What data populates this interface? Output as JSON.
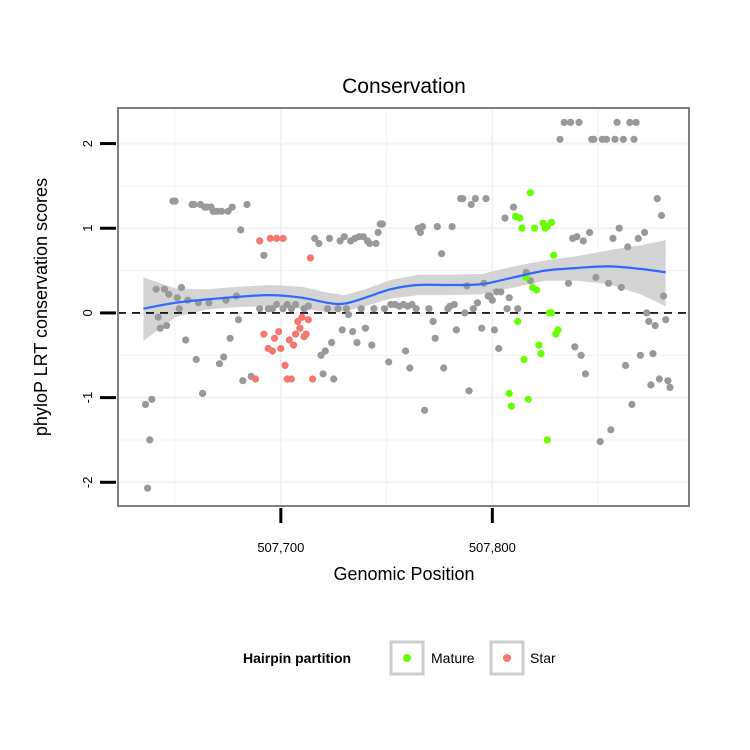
{
  "chart_data": {
    "type": "scatter",
    "title": "Conservation",
    "xlabel": "Genomic Position",
    "ylabel": "phyloP LRT conservation scores",
    "xlim": [
      507623,
      507893
    ],
    "ylim": [
      -2.28,
      2.42
    ],
    "x_ticks": [
      {
        "value": 507700,
        "label": "507,700"
      },
      {
        "value": 507800,
        "label": "507,800"
      }
    ],
    "y_ticks": [
      {
        "value": -2,
        "label": "-2"
      },
      {
        "value": -1,
        "label": "-1"
      },
      {
        "value": 0,
        "label": "0"
      },
      {
        "value": 1,
        "label": "1"
      },
      {
        "value": 2,
        "label": "2"
      }
    ],
    "grid": true,
    "reference_line": {
      "y": 0,
      "style": "dashed"
    },
    "legend": {
      "title": "Hairpin partition",
      "placement": "bottom",
      "entries": [
        {
          "label": "Mature",
          "color": "#66ff00"
        },
        {
          "label": "Star",
          "color": "#f8766d"
        }
      ]
    },
    "colors": {
      "other": "#999999",
      "smooth_line": "#3366ff",
      "ribbon": "#cccccc",
      "panel_border": "#7f7f7f"
    },
    "smooth": {
      "x": [
        507635,
        507650,
        507665,
        507680,
        507695,
        507710,
        507722,
        507730,
        507740,
        507752,
        507765,
        507780,
        507795,
        507810,
        507825,
        507840,
        507855,
        507870,
        507882
      ],
      "y": [
        0.05,
        0.12,
        0.16,
        0.19,
        0.21,
        0.18,
        0.12,
        0.11,
        0.18,
        0.28,
        0.33,
        0.33,
        0.34,
        0.42,
        0.5,
        0.53,
        0.55,
        0.52,
        0.48
      ],
      "lower": [
        -0.33,
        -0.05,
        0.04,
        0.07,
        0.08,
        0.05,
        0.01,
        0.02,
        0.08,
        0.17,
        0.21,
        0.21,
        0.22,
        0.3,
        0.38,
        0.38,
        0.34,
        0.22,
        0.08
      ],
      "upper": [
        0.42,
        0.29,
        0.28,
        0.31,
        0.33,
        0.31,
        0.24,
        0.21,
        0.28,
        0.39,
        0.45,
        0.45,
        0.46,
        0.55,
        0.62,
        0.67,
        0.74,
        0.8,
        0.86
      ]
    },
    "series": [
      {
        "name": "Mature",
        "color": "#66ff00",
        "points": [
          [
            507811,
            1.14
          ],
          [
            507813,
            1.12
          ],
          [
            507814,
            1.0
          ],
          [
            507816,
            0.42
          ],
          [
            507818,
            1.42
          ],
          [
            507820,
            1.0
          ],
          [
            507821,
            0.27
          ],
          [
            507822,
            -0.38
          ],
          [
            507823,
            -0.48
          ],
          [
            507824,
            1.06
          ],
          [
            507825,
            1.0
          ],
          [
            507826,
            1.02
          ],
          [
            507827,
            0.0
          ],
          [
            507828,
            1.07
          ],
          [
            507829,
            0.68
          ],
          [
            507830,
            -0.25
          ],
          [
            507831,
            -0.2
          ],
          [
            507808,
            -0.95
          ],
          [
            507809,
            -1.1
          ],
          [
            507812,
            -0.1
          ],
          [
            507815,
            -0.55
          ],
          [
            507817,
            -1.02
          ],
          [
            507819,
            0.3
          ],
          [
            507826,
            -1.5
          ],
          [
            507828,
            0.0
          ]
        ]
      },
      {
        "name": "Star",
        "color": "#f8766d",
        "points": [
          [
            507688,
            -0.78
          ],
          [
            507690,
            0.85
          ],
          [
            507692,
            -0.25
          ],
          [
            507694,
            -0.42
          ],
          [
            507695,
            0.88
          ],
          [
            507697,
            -0.3
          ],
          [
            507698,
            0.88
          ],
          [
            507700,
            -0.42
          ],
          [
            507701,
            0.88
          ],
          [
            507702,
            -0.62
          ],
          [
            507703,
            -0.78
          ],
          [
            507704,
            -0.32
          ],
          [
            507705,
            -0.78
          ],
          [
            507706,
            -0.38
          ],
          [
            507707,
            -0.25
          ],
          [
            507708,
            -0.1
          ],
          [
            507709,
            -0.18
          ],
          [
            507710,
            -0.05
          ],
          [
            507712,
            -0.25
          ],
          [
            507713,
            -0.08
          ],
          [
            507714,
            0.65
          ],
          [
            507715,
            -0.78
          ],
          [
            507696,
            -0.45
          ],
          [
            507711,
            -0.28
          ],
          [
            507699,
            -0.22
          ]
        ]
      },
      {
        "name": "",
        "color": "#999999",
        "points": [
          [
            507636,
            -1.08
          ],
          [
            507638,
            -1.5
          ],
          [
            507637,
            -2.07
          ],
          [
            507639,
            -1.02
          ],
          [
            507641,
            0.28
          ],
          [
            507642,
            -0.05
          ],
          [
            507643,
            -0.18
          ],
          [
            507645,
            0.28
          ],
          [
            507646,
            -0.15
          ],
          [
            507647,
            0.22
          ],
          [
            507649,
            1.32
          ],
          [
            507650,
            1.32
          ],
          [
            507651,
            0.18
          ],
          [
            507652,
            0.05
          ],
          [
            507653,
            0.3
          ],
          [
            507655,
            -0.32
          ],
          [
            507656,
            0.15
          ],
          [
            507658,
            1.28
          ],
          [
            507659,
            1.28
          ],
          [
            507660,
            -0.55
          ],
          [
            507661,
            0.12
          ],
          [
            507662,
            1.28
          ],
          [
            507663,
            -0.95
          ],
          [
            507664,
            1.25
          ],
          [
            507665,
            1.25
          ],
          [
            507666,
            0.12
          ],
          [
            507667,
            1.25
          ],
          [
            507668,
            1.2
          ],
          [
            507669,
            1.2
          ],
          [
            507670,
            1.2
          ],
          [
            507671,
            -0.6
          ],
          [
            507672,
            1.2
          ],
          [
            507673,
            -0.52
          ],
          [
            507674,
            0.15
          ],
          [
            507675,
            1.2
          ],
          [
            507676,
            -0.3
          ],
          [
            507677,
            1.25
          ],
          [
            507679,
            0.2
          ],
          [
            507680,
            -0.08
          ],
          [
            507681,
            0.98
          ],
          [
            507682,
            -0.8
          ],
          [
            507684,
            1.28
          ],
          [
            507686,
            -0.75
          ],
          [
            507690,
            0.05
          ],
          [
            507692,
            0.68
          ],
          [
            507694,
            0.05
          ],
          [
            507696,
            0.05
          ],
          [
            507698,
            0.1
          ],
          [
            507701,
            0.05
          ],
          [
            507703,
            0.1
          ],
          [
            507705,
            0.05
          ],
          [
            507707,
            0.1
          ],
          [
            507711,
            0.05
          ],
          [
            507713,
            0.08
          ],
          [
            507716,
            0.88
          ],
          [
            507718,
            0.82
          ],
          [
            507719,
            -0.5
          ],
          [
            507720,
            -0.72
          ],
          [
            507721,
            -0.45
          ],
          [
            507722,
            0.05
          ],
          [
            507723,
            0.88
          ],
          [
            507724,
            -0.35
          ],
          [
            507725,
            -0.78
          ],
          [
            507727,
            0.05
          ],
          [
            507728,
            0.85
          ],
          [
            507729,
            -0.2
          ],
          [
            507730,
            0.9
          ],
          [
            507731,
            0.05
          ],
          [
            507732,
            -0.02
          ],
          [
            507733,
            0.85
          ],
          [
            507734,
            -0.22
          ],
          [
            507735,
            0.88
          ],
          [
            507736,
            -0.35
          ],
          [
            507737,
            0.9
          ],
          [
            507738,
            0.05
          ],
          [
            507739,
            0.9
          ],
          [
            507740,
            -0.18
          ],
          [
            507741,
            0.85
          ],
          [
            507742,
            0.82
          ],
          [
            507743,
            -0.38
          ],
          [
            507744,
            0.05
          ],
          [
            507745,
            0.82
          ],
          [
            507746,
            0.95
          ],
          [
            507747,
            1.05
          ],
          [
            507748,
            1.05
          ],
          [
            507749,
            0.05
          ],
          [
            507751,
            -0.58
          ],
          [
            507752,
            0.1
          ],
          [
            507754,
            0.1
          ],
          [
            507756,
            0.08
          ],
          [
            507758,
            0.1
          ],
          [
            507759,
            -0.45
          ],
          [
            507760,
            0.08
          ],
          [
            507761,
            -0.65
          ],
          [
            507762,
            0.1
          ],
          [
            507764,
            0.05
          ],
          [
            507765,
            1.0
          ],
          [
            507766,
            0.95
          ],
          [
            507767,
            1.02
          ],
          [
            507768,
            -1.15
          ],
          [
            507770,
            0.05
          ],
          [
            507772,
            -0.1
          ],
          [
            507773,
            -0.3
          ],
          [
            507774,
            1.02
          ],
          [
            507776,
            0.7
          ],
          [
            507777,
            -0.65
          ],
          [
            507779,
            0.05
          ],
          [
            507780,
            0.08
          ],
          [
            507781,
            1.02
          ],
          [
            507782,
            0.1
          ],
          [
            507783,
            -0.2
          ],
          [
            507785,
            1.35
          ],
          [
            507786,
            1.35
          ],
          [
            507787,
            0.0
          ],
          [
            507788,
            0.32
          ],
          [
            507789,
            -0.92
          ],
          [
            507790,
            1.28
          ],
          [
            507791,
            0.05
          ],
          [
            507792,
            1.35
          ],
          [
            507793,
            0.12
          ],
          [
            507795,
            -0.18
          ],
          [
            507796,
            0.35
          ],
          [
            507797,
            1.35
          ],
          [
            507798,
            0.2
          ],
          [
            507799,
            0.2
          ],
          [
            507800,
            0.15
          ],
          [
            507801,
            -0.2
          ],
          [
            507802,
            0.25
          ],
          [
            507803,
            -0.42
          ],
          [
            507804,
            0.25
          ],
          [
            507806,
            1.12
          ],
          [
            507807,
            0.05
          ],
          [
            507808,
            0.18
          ],
          [
            507810,
            1.25
          ],
          [
            507812,
            0.05
          ],
          [
            507816,
            0.48
          ],
          [
            507818,
            0.38
          ],
          [
            507832,
            2.05
          ],
          [
            507834,
            2.25
          ],
          [
            507836,
            0.35
          ],
          [
            507837,
            2.25
          ],
          [
            507838,
            0.88
          ],
          [
            507839,
            -0.4
          ],
          [
            507840,
            0.9
          ],
          [
            507841,
            2.25
          ],
          [
            507842,
            -0.5
          ],
          [
            507843,
            0.85
          ],
          [
            507844,
            -0.72
          ],
          [
            507846,
            0.95
          ],
          [
            507847,
            2.05
          ],
          [
            507848,
            2.05
          ],
          [
            507849,
            0.42
          ],
          [
            507851,
            -1.52
          ],
          [
            507852,
            2.05
          ],
          [
            507854,
            2.05
          ],
          [
            507855,
            0.35
          ],
          [
            507856,
            -1.38
          ],
          [
            507857,
            0.88
          ],
          [
            507858,
            2.05
          ],
          [
            507859,
            2.25
          ],
          [
            507860,
            1.0
          ],
          [
            507861,
            0.3
          ],
          [
            507862,
            2.05
          ],
          [
            507863,
            -0.62
          ],
          [
            507864,
            0.78
          ],
          [
            507865,
            2.25
          ],
          [
            507866,
            -1.08
          ],
          [
            507867,
            2.05
          ],
          [
            507868,
            2.25
          ],
          [
            507869,
            0.88
          ],
          [
            507870,
            -0.5
          ],
          [
            507872,
            0.95
          ],
          [
            507873,
            0.0
          ],
          [
            507874,
            -0.1
          ],
          [
            507875,
            -0.85
          ],
          [
            507876,
            -0.48
          ],
          [
            507877,
            -0.15
          ],
          [
            507878,
            1.35
          ],
          [
            507879,
            -0.78
          ],
          [
            507880,
            1.15
          ],
          [
            507881,
            0.2
          ],
          [
            507882,
            -0.08
          ],
          [
            507883,
            -0.8
          ],
          [
            507884,
            -0.88
          ]
        ]
      }
    ]
  }
}
